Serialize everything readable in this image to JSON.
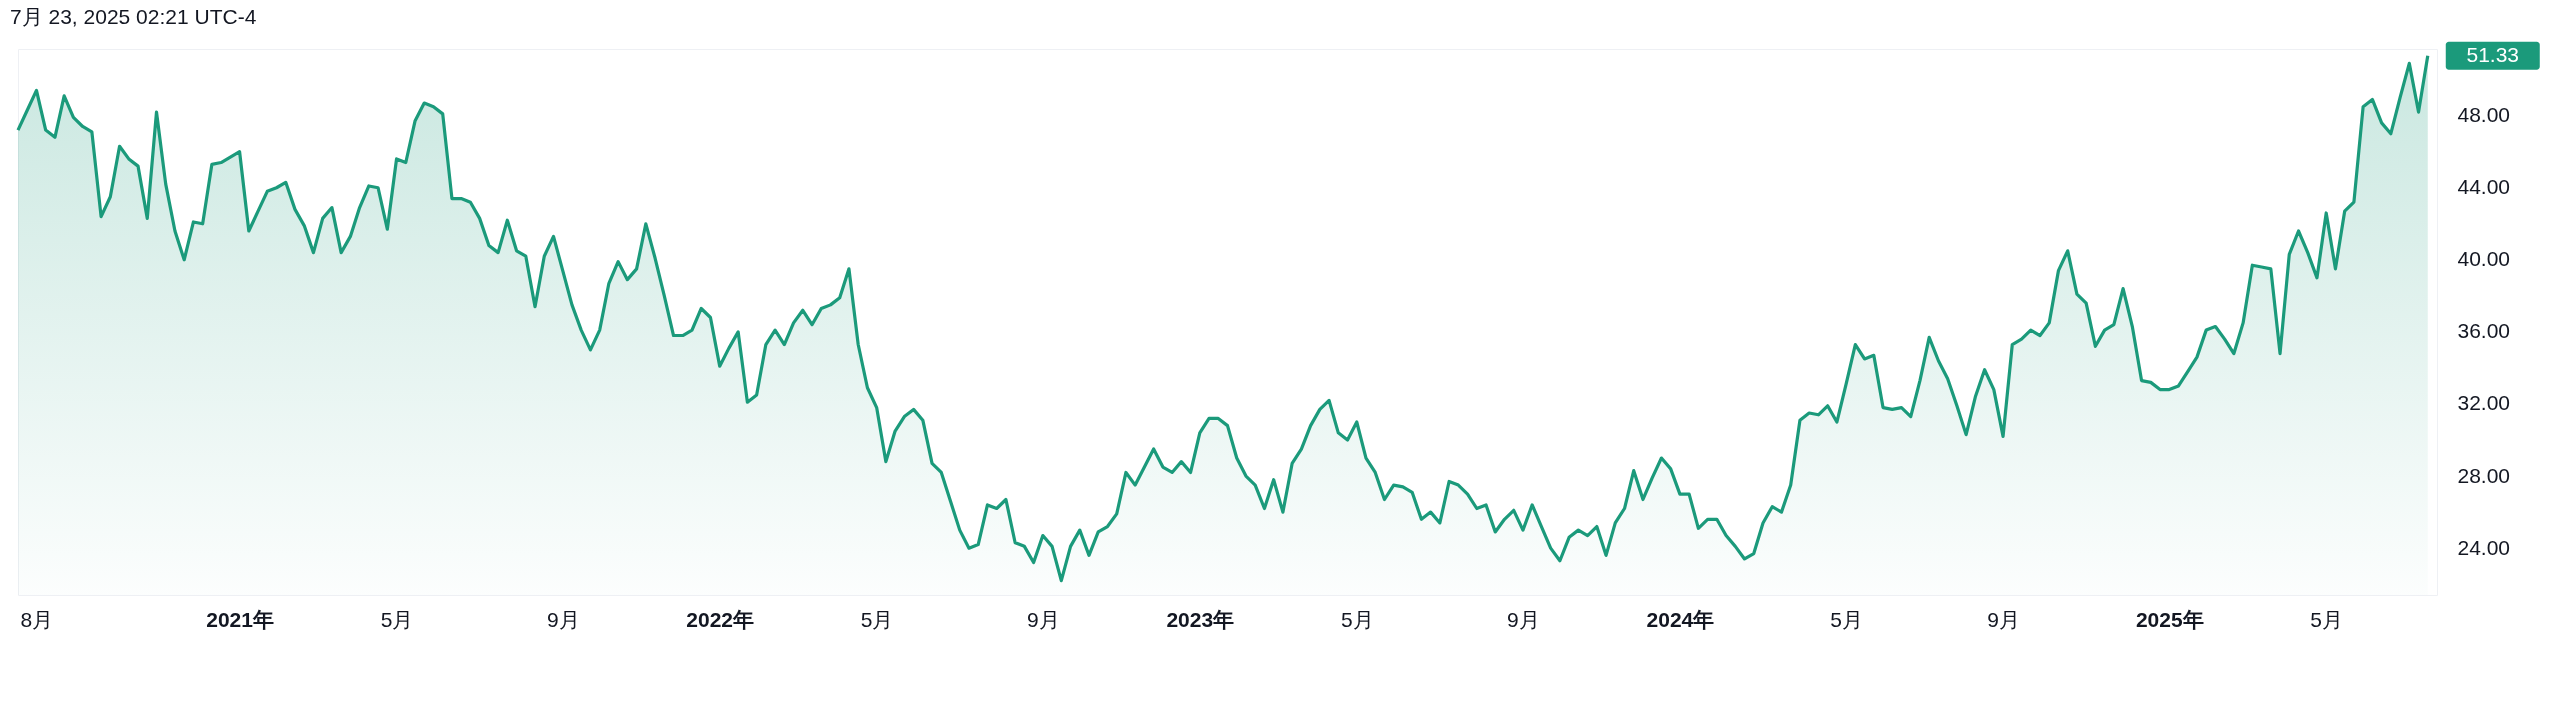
{
  "chart_data": {
    "type": "area",
    "color": "#1b9a7b",
    "annotations": [
      "7月 23, 2025 02:21 UTC-4",
      {
        "text": "51.33",
        "x": "2025-07-21",
        "y": 51.33
      }
    ],
    "x": [
      "2020-07-20",
      "2020-07-27",
      "2020-08-03",
      "2020-08-10",
      "2020-08-17",
      "2020-08-24",
      "2020-08-31",
      "2020-09-07",
      "2020-09-14",
      "2020-09-21",
      "2020-09-28",
      "2020-10-05",
      "2020-10-12",
      "2020-10-19",
      "2020-10-26",
      "2020-11-02",
      "2020-11-09",
      "2020-11-16",
      "2020-11-23",
      "2020-11-30",
      "2020-12-07",
      "2020-12-14",
      "2020-12-21",
      "2020-12-28",
      "2021-01-04",
      "2021-01-11",
      "2021-01-18",
      "2021-01-25",
      "2021-02-01",
      "2021-02-08",
      "2021-02-15",
      "2021-02-22",
      "2021-03-01",
      "2021-03-08",
      "2021-03-15",
      "2021-03-22",
      "2021-03-29",
      "2021-04-05",
      "2021-04-12",
      "2021-04-19",
      "2021-04-26",
      "2021-05-03",
      "2021-05-10",
      "2021-05-17",
      "2021-05-24",
      "2021-05-31",
      "2021-06-07",
      "2021-06-14",
      "2021-06-21",
      "2021-06-28",
      "2021-07-05",
      "2021-07-12",
      "2021-07-19",
      "2021-07-26",
      "2021-08-02",
      "2021-08-09",
      "2021-08-16",
      "2021-08-23",
      "2021-08-30",
      "2021-09-06",
      "2021-09-13",
      "2021-09-20",
      "2021-09-27",
      "2021-10-04",
      "2021-10-11",
      "2021-10-18",
      "2021-10-25",
      "2021-11-01",
      "2021-11-08",
      "2021-11-15",
      "2021-11-22",
      "2021-11-29",
      "2021-12-06",
      "2021-12-13",
      "2021-12-20",
      "2021-12-27",
      "2022-01-03",
      "2022-01-10",
      "2022-01-17",
      "2022-01-24",
      "2022-01-31",
      "2022-02-07",
      "2022-02-14",
      "2022-02-21",
      "2022-02-28",
      "2022-03-07",
      "2022-03-14",
      "2022-03-21",
      "2022-03-28",
      "2022-04-04",
      "2022-04-11",
      "2022-04-18",
      "2022-04-25",
      "2022-05-02",
      "2022-05-09",
      "2022-05-16",
      "2022-05-23",
      "2022-05-30",
      "2022-06-06",
      "2022-06-13",
      "2022-06-20",
      "2022-06-27",
      "2022-07-04",
      "2022-07-11",
      "2022-07-18",
      "2022-07-25",
      "2022-08-01",
      "2022-08-08",
      "2022-08-15",
      "2022-08-22",
      "2022-08-29",
      "2022-09-05",
      "2022-09-12",
      "2022-09-19",
      "2022-09-26",
      "2022-10-03",
      "2022-10-10",
      "2022-10-17",
      "2022-10-24",
      "2022-10-31",
      "2022-11-07",
      "2022-11-14",
      "2022-11-21",
      "2022-11-28",
      "2022-12-05",
      "2022-12-12",
      "2022-12-19",
      "2022-12-26",
      "2023-01-02",
      "2023-01-09",
      "2023-01-16",
      "2023-01-23",
      "2023-01-30",
      "2023-02-06",
      "2023-02-13",
      "2023-02-20",
      "2023-02-27",
      "2023-03-06",
      "2023-03-13",
      "2023-03-20",
      "2023-03-27",
      "2023-04-03",
      "2023-04-10",
      "2023-04-17",
      "2023-04-24",
      "2023-05-01",
      "2023-05-08",
      "2023-05-15",
      "2023-05-22",
      "2023-05-29",
      "2023-06-05",
      "2023-06-12",
      "2023-06-19",
      "2023-06-26",
      "2023-07-03",
      "2023-07-10",
      "2023-07-17",
      "2023-07-24",
      "2023-07-31",
      "2023-08-07",
      "2023-08-14",
      "2023-08-21",
      "2023-08-28",
      "2023-09-04",
      "2023-09-11",
      "2023-09-18",
      "2023-09-25",
      "2023-10-02",
      "2023-10-09",
      "2023-10-16",
      "2023-10-23",
      "2023-10-30",
      "2023-11-06",
      "2023-11-13",
      "2023-11-20",
      "2023-11-27",
      "2023-12-04",
      "2023-12-11",
      "2023-12-18",
      "2023-12-25",
      "2024-01-01",
      "2024-01-08",
      "2024-01-15",
      "2024-01-22",
      "2024-01-29",
      "2024-02-05",
      "2024-02-12",
      "2024-02-19",
      "2024-02-26",
      "2024-03-04",
      "2024-03-11",
      "2024-03-18",
      "2024-03-25",
      "2024-04-01",
      "2024-04-08",
      "2024-04-15",
      "2024-04-22",
      "2024-04-29",
      "2024-05-06",
      "2024-05-13",
      "2024-05-20",
      "2024-05-27",
      "2024-06-03",
      "2024-06-10",
      "2024-06-17",
      "2024-06-24",
      "2024-07-01",
      "2024-07-08",
      "2024-07-15",
      "2024-07-22",
      "2024-07-29",
      "2024-08-05",
      "2024-08-12",
      "2024-08-19",
      "2024-08-26",
      "2024-09-02",
      "2024-09-09",
      "2024-09-16",
      "2024-09-23",
      "2024-09-30",
      "2024-10-07",
      "2024-10-14",
      "2024-10-21",
      "2024-10-28",
      "2024-11-04",
      "2024-11-11",
      "2024-11-18",
      "2024-11-25",
      "2024-12-02",
      "2024-12-09",
      "2024-12-16",
      "2024-12-23",
      "2024-12-30",
      "2025-01-06",
      "2025-01-13",
      "2025-01-20",
      "2025-01-27",
      "2025-02-03",
      "2025-02-10",
      "2025-02-17",
      "2025-02-24",
      "2025-03-03",
      "2025-03-10",
      "2025-03-17",
      "2025-03-24",
      "2025-03-31",
      "2025-04-07",
      "2025-04-14",
      "2025-04-21",
      "2025-04-28",
      "2025-05-05",
      "2025-05-12",
      "2025-05-19",
      "2025-05-26",
      "2025-06-02",
      "2025-06-09",
      "2025-06-16",
      "2025-06-23",
      "2025-06-30",
      "2025-07-07",
      "2025-07-14",
      "2025-07-21"
    ],
    "values": [
      47.2,
      48.3,
      49.4,
      47.2,
      46.8,
      49.1,
      47.9,
      47.4,
      47.1,
      42.4,
      43.5,
      46.3,
      45.6,
      45.2,
      42.3,
      48.2,
      44.2,
      41.6,
      40.0,
      42.1,
      42.0,
      45.3,
      45.4,
      45.7,
      46.0,
      41.6,
      42.7,
      43.8,
      44.0,
      44.3,
      42.8,
      41.9,
      40.4,
      42.3,
      42.9,
      40.4,
      41.3,
      42.9,
      44.1,
      44.0,
      41.7,
      45.6,
      45.4,
      47.7,
      48.7,
      48.5,
      48.1,
      43.4,
      43.4,
      43.2,
      42.3,
      40.8,
      40.4,
      42.2,
      40.5,
      40.2,
      37.4,
      40.2,
      41.3,
      39.4,
      37.5,
      36.1,
      35.0,
      36.1,
      38.7,
      39.9,
      38.9,
      39.5,
      42.0,
      40.1,
      38.0,
      35.8,
      35.8,
      36.1,
      37.3,
      36.8,
      34.1,
      35.1,
      36.0,
      32.1,
      32.5,
      35.3,
      36.1,
      35.3,
      36.5,
      37.2,
      36.4,
      37.3,
      37.5,
      37.9,
      39.5,
      35.3,
      32.9,
      31.8,
      28.8,
      30.5,
      31.3,
      31.7,
      31.1,
      28.7,
      28.2,
      26.6,
      25.0,
      24.0,
      24.2,
      26.4,
      26.2,
      26.7,
      24.3,
      24.1,
      23.2,
      24.7,
      24.1,
      22.2,
      24.1,
      25.0,
      23.6,
      24.9,
      25.2,
      25.9,
      28.2,
      27.5,
      28.5,
      29.5,
      28.5,
      28.2,
      28.8,
      28.2,
      30.4,
      31.2,
      31.2,
      30.8,
      29.0,
      28.0,
      27.5,
      26.2,
      27.8,
      26.0,
      28.7,
      29.5,
      30.8,
      31.7,
      32.2,
      30.4,
      30.0,
      31.0,
      29.0,
      28.2,
      26.7,
      27.5,
      27.4,
      27.1,
      25.6,
      26.0,
      25.4,
      27.7,
      27.5,
      27.0,
      26.2,
      26.4,
      24.9,
      25.6,
      26.1,
      25.0,
      26.4,
      25.2,
      24.0,
      23.3,
      24.6,
      25.0,
      24.7,
      25.2,
      23.6,
      25.4,
      26.2,
      28.3,
      26.7,
      27.9,
      29.0,
      28.4,
      27.0,
      27.0,
      25.1,
      25.6,
      25.6,
      24.7,
      24.1,
      23.4,
      23.7,
      25.4,
      26.3,
      26.0,
      27.5,
      31.1,
      31.5,
      31.4,
      31.9,
      31.0,
      33.1,
      35.3,
      34.5,
      34.7,
      31.8,
      31.7,
      31.8,
      31.3,
      33.3,
      35.7,
      34.4,
      33.4,
      31.9,
      30.3,
      32.4,
      33.9,
      32.8,
      30.2,
      35.3,
      35.6,
      36.1,
      35.8,
      36.5,
      39.4,
      40.5,
      38.1,
      37.6,
      35.2,
      36.1,
      36.4,
      38.4,
      36.3,
      33.3,
      33.2,
      32.8,
      32.8,
      33.0,
      33.8,
      34.6,
      36.1,
      36.3,
      35.6,
      34.8,
      36.5,
      39.7,
      39.6,
      39.5,
      34.8,
      40.3,
      41.6,
      40.4,
      39.0,
      42.6,
      39.5,
      42.7,
      43.2,
      48.5,
      48.9,
      47.6,
      47.0,
      49.0,
      50.9,
      48.2,
      51.33
    ],
    "xlim": [
      "2020-07-20",
      "2025-07-28"
    ],
    "xticks": [
      {
        "value": "2020-08-03",
        "label": "8月"
      },
      {
        "value": "2021-01-04",
        "label": "2021年"
      },
      {
        "value": "2021-05-03",
        "label": "5月"
      },
      {
        "value": "2021-09-06",
        "label": "9月"
      },
      {
        "value": "2022-01-03",
        "label": "2022年"
      },
      {
        "value": "2022-05-02",
        "label": "5月"
      },
      {
        "value": "2022-09-05",
        "label": "9月"
      },
      {
        "value": "2023-01-02",
        "label": "2023年"
      },
      {
        "value": "2023-05-01",
        "label": "5月"
      },
      {
        "value": "2023-09-04",
        "label": "9月"
      },
      {
        "value": "2024-01-01",
        "label": "2024年"
      },
      {
        "value": "2024-05-06",
        "label": "5月"
      },
      {
        "value": "2024-09-02",
        "label": "9月"
      },
      {
        "value": "2025-01-06",
        "label": "2025年"
      },
      {
        "value": "2025-05-05",
        "label": "5月"
      }
    ],
    "ylim": [
      21.4,
      51.7
    ],
    "yticks": [
      {
        "value": 24,
        "label": "24.00"
      },
      {
        "value": 28,
        "label": "28.00"
      },
      {
        "value": 32,
        "label": "32.00"
      },
      {
        "value": 36,
        "label": "36.00"
      },
      {
        "value": 40,
        "label": "40.00"
      },
      {
        "value": 44,
        "label": "44.00"
      },
      {
        "value": 48,
        "label": "48.00"
      }
    ]
  }
}
